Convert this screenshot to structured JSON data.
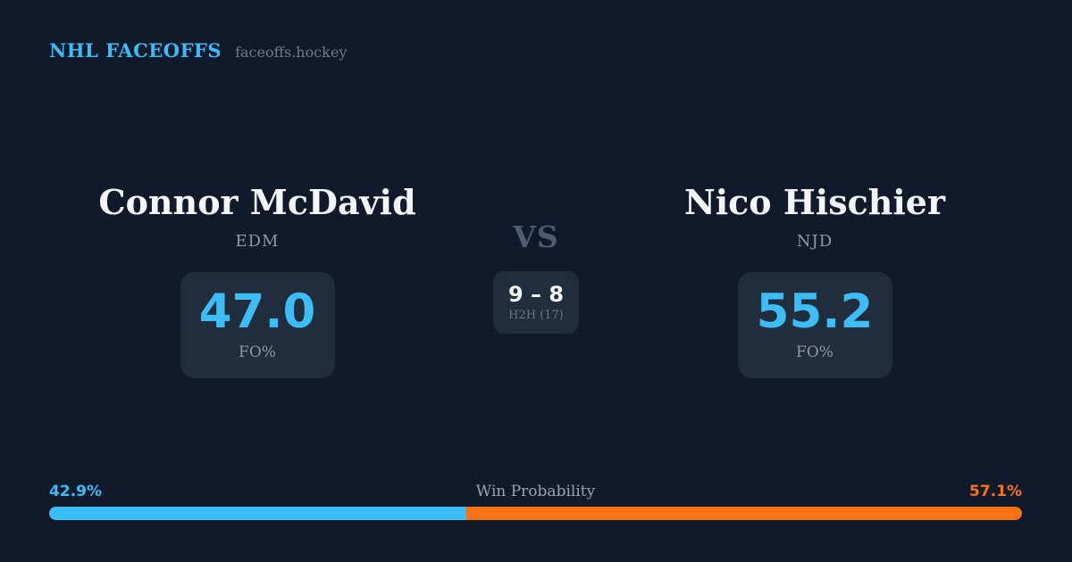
{
  "header": {
    "brand": "NHL FACEOFFS",
    "site": "faceoffs.hockey"
  },
  "matchup": {
    "vs_label": "VS",
    "h2h": {
      "score": "9 – 8",
      "label": "H2H (17)"
    },
    "players": [
      {
        "name": "Connor McDavid",
        "team": "EDM",
        "stat_value": "47.0",
        "stat_label": "FO%"
      },
      {
        "name": "Nico Hischier",
        "team": "NJD",
        "stat_value": "55.2",
        "stat_label": "FO%"
      }
    ]
  },
  "win_probability": {
    "title": "Win Probability",
    "left_pct_label": "42.9%",
    "right_pct_label": "57.1%",
    "left_value": 42.9,
    "right_value": 57.1
  },
  "colors": {
    "background": "#101a2b",
    "card": "#212c3d",
    "accent_blue": "#3dbdf6",
    "accent_orange": "#f97316",
    "text_primary": "#f3f6fa",
    "text_muted": "#8e98a9"
  },
  "chart_data": {
    "type": "bar",
    "title": "Win Probability",
    "orientation": "horizontal_stacked",
    "categories": [
      "Win Probability"
    ],
    "series": [
      {
        "name": "Connor McDavid (EDM)",
        "values": [
          42.9
        ],
        "color": "#3dbdf6"
      },
      {
        "name": "Nico Hischier (NJD)",
        "values": [
          57.1
        ],
        "color": "#f97316"
      }
    ],
    "xlim": [
      0,
      100
    ],
    "data_labels": [
      "42.9%",
      "57.1%"
    ],
    "legend_position": "none",
    "grid": false,
    "extra_stats": {
      "faceoff_pct": {
        "Connor McDavid": 47.0,
        "Nico Hischier": 55.2
      },
      "head_to_head": {
        "Connor McDavid_wins": 9,
        "Nico Hischier_wins": 8,
        "total_faceoffs": 17
      }
    }
  }
}
